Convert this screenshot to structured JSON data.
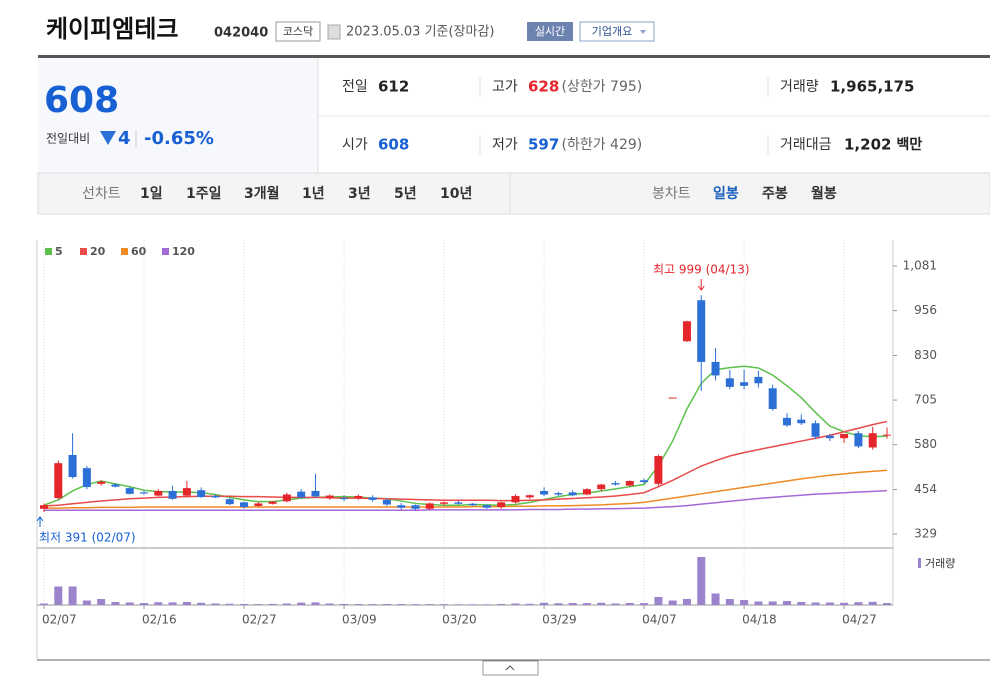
{
  "header": {
    "name": "케이피엠테크",
    "code": "042040",
    "market": "코스닥",
    "date": "2023.05.03 기준(장마감)",
    "realtime": "실시간",
    "overview": "기업개요"
  },
  "summary": {
    "price": "608",
    "change_label": "전일대비",
    "change": "4",
    "change_pct": "-0.65%",
    "stats": [
      {
        "label": "전일",
        "value": "612"
      },
      {
        "label": "고가",
        "value": "628",
        "note": "(상한가 795)"
      },
      {
        "label": "거래량",
        "value": "1,965,175"
      },
      {
        "label": "시가",
        "value": "608"
      },
      {
        "label": "저가",
        "value": "597",
        "note": "(하한가 429)"
      },
      {
        "label": "거래대금",
        "value": "1,202",
        "unit": "백만"
      }
    ]
  },
  "tabs": {
    "line_label": "선차트",
    "line_periods": [
      "1일",
      "1주일",
      "3개월",
      "1년",
      "3년",
      "5년",
      "10년"
    ],
    "candle_label": "봉차트",
    "candle_periods": [
      "일봉",
      "주봉",
      "월봉"
    ]
  },
  "chart_data": {
    "type": "candlestick",
    "categories": [
      "02/07",
      null,
      null,
      null,
      null,
      null,
      null,
      "02/16",
      null,
      null,
      null,
      null,
      null,
      null,
      "02/27",
      null,
      null,
      null,
      null,
      null,
      null,
      "03/09",
      null,
      null,
      null,
      null,
      null,
      null,
      "03/20",
      null,
      null,
      null,
      null,
      null,
      null,
      "03/29",
      null,
      null,
      null,
      null,
      null,
      null,
      "04/07",
      null,
      null,
      null,
      null,
      null,
      null,
      "04/18",
      null,
      null,
      null,
      null,
      null,
      null,
      "04/27",
      null,
      null,
      null
    ],
    "open": [
      400,
      430,
      551,
      514,
      470,
      468,
      458,
      446,
      437,
      450,
      437,
      452,
      436,
      427,
      418,
      408,
      414,
      421,
      448,
      450,
      430,
      430,
      430,
      432,
      425,
      410,
      410,
      400,
      414,
      418,
      414,
      410,
      405,
      418,
      432,
      450,
      444,
      446,
      440,
      455,
      472,
      465,
      480,
      470,
      712,
      870,
      985,
      812,
      766,
      755,
      770,
      738,
      655,
      650,
      640,
      605,
      598,
      612,
      572,
      608
    ],
    "high": [
      415,
      535,
      612,
      520,
      480,
      472,
      462,
      450,
      455,
      465,
      478,
      460,
      440,
      430,
      420,
      420,
      422,
      445,
      455,
      498,
      440,
      438,
      440,
      438,
      430,
      416,
      412,
      418,
      420,
      422,
      416,
      412,
      420,
      440,
      440,
      460,
      448,
      452,
      458,
      470,
      478,
      480,
      485,
      552,
      712,
      928,
      999,
      851,
      790,
      790,
      787,
      748,
      668,
      665,
      648,
      610,
      610,
      618,
      630,
      628
    ],
    "low": [
      391,
      425,
      485,
      455,
      465,
      460,
      440,
      440,
      435,
      425,
      432,
      430,
      430,
      410,
      400,
      405,
      412,
      418,
      428,
      430,
      425,
      422,
      425,
      420,
      408,
      398,
      395,
      397,
      410,
      412,
      408,
      400,
      400,
      415,
      428,
      435,
      436,
      435,
      438,
      450,
      465,
      462,
      470,
      465,
      712,
      868,
      730,
      760,
      735,
      735,
      740,
      675,
      630,
      635,
      595,
      590,
      585,
      570,
      566,
      597
    ],
    "close": [
      410,
      528,
      489,
      461,
      476,
      462,
      442,
      443,
      450,
      428,
      458,
      433,
      432,
      413,
      405,
      415,
      420,
      440,
      432,
      435,
      437,
      427,
      436,
      425,
      412,
      403,
      400,
      415,
      418,
      414,
      410,
      403,
      418,
      436,
      438,
      440,
      440,
      438,
      455,
      468,
      468,
      478,
      475,
      548,
      712,
      926,
      812,
      774,
      742,
      745,
      752,
      680,
      634,
      640,
      602,
      598,
      610,
      575,
      612,
      608
    ],
    "up_color": "#e4262c",
    "down_color": "#2b6fd7",
    "series": [
      {
        "name": "5",
        "color": "#5cc24c",
        "values": [
          410,
          425,
          450,
          468,
          478,
          470,
          462,
          452,
          448,
          447,
          447,
          445,
          440,
          432,
          425,
          420,
          420,
          425,
          430,
          432,
          433,
          434,
          433,
          430,
          428,
          422,
          415,
          412,
          410,
          410,
          412,
          411,
          410,
          412,
          418,
          426,
          434,
          440,
          444,
          450,
          456,
          462,
          468,
          520,
          590,
          680,
          752,
          790,
          796,
          800,
          795,
          775,
          745,
          712,
          670,
          632,
          616,
          605,
          602,
          604
        ]
      },
      {
        "name": "20",
        "color": "#e94a4a",
        "values": [
          408,
          410,
          414,
          418,
          422,
          425,
          428,
          430,
          432,
          433,
          434,
          435,
          435,
          435,
          434,
          434,
          433,
          432,
          432,
          432,
          431,
          430,
          430,
          429,
          428,
          427,
          426,
          425,
          424,
          424,
          424,
          424,
          423,
          423,
          424,
          425,
          427,
          429,
          431,
          433,
          436,
          440,
          445,
          462,
          480,
          500,
          520,
          535,
          548,
          558,
          566,
          574,
          582,
          590,
          598,
          606,
          616,
          626,
          636,
          645
        ]
      },
      {
        "name": "60",
        "color": "#f08a24",
        "values": [
          402,
          402,
          403,
          403,
          404,
          404,
          404,
          405,
          405,
          405,
          405,
          405,
          405,
          405,
          405,
          405,
          405,
          405,
          405,
          405,
          405,
          405,
          405,
          405,
          405,
          405,
          405,
          405,
          405,
          405,
          406,
          406,
          406,
          407,
          407,
          408,
          408,
          409,
          410,
          411,
          413,
          415,
          418,
          424,
          430,
          436,
          442,
          448,
          454,
          460,
          466,
          472,
          478,
          484,
          489,
          494,
          498,
          502,
          505,
          508
        ]
      },
      {
        "name": "120",
        "color": "#a56ad6",
        "values": [
          396,
          396,
          396,
          396,
          396,
          396,
          396,
          396,
          396,
          396,
          396,
          396,
          396,
          396,
          396,
          396,
          396,
          396,
          396,
          396,
          396,
          396,
          396,
          396,
          396,
          396,
          396,
          397,
          397,
          397,
          397,
          397,
          397,
          397,
          398,
          398,
          398,
          399,
          399,
          400,
          400,
          401,
          402,
          404,
          406,
          409,
          413,
          417,
          421,
          425,
          429,
          432,
          435,
          438,
          441,
          443,
          445,
          447,
          449,
          451
        ]
      }
    ],
    "ylim": [
      290,
      1154
    ],
    "yticks": [
      {
        "value": 1081,
        "label": "1,081"
      },
      956,
      830,
      705,
      580,
      454,
      329
    ],
    "high_annotation": "최고 999 (04/13)",
    "low_annotation": "최저 391 (02/07)",
    "volume_label": "거래량",
    "volume_color": "#9b84cc",
    "volume": [
      1500000,
      18500000,
      18500000,
      4500000,
      6000000,
      3000000,
      2500000,
      2000000,
      2800000,
      2600000,
      3000000,
      2200000,
      1500000,
      1200000,
      1000000,
      900000,
      1100000,
      1500000,
      2400000,
      2600000,
      1500000,
      1000000,
      900000,
      900000,
      1000000,
      900000,
      800000,
      900000,
      800000,
      700000,
      700000,
      700000,
      1000000,
      1500000,
      1200000,
      2300000,
      1800000,
      2000000,
      1900000,
      2200000,
      1500000,
      2000000,
      1900000,
      8000000,
      4500000,
      6000000,
      48000000,
      11500000,
      6000000,
      5000000,
      3500000,
      3500000,
      4000000,
      3000000,
      2500000,
      2500000,
      2200000,
      2800000,
      3200000,
      1965175
    ],
    "vlim": [
      0,
      50000000
    ]
  }
}
